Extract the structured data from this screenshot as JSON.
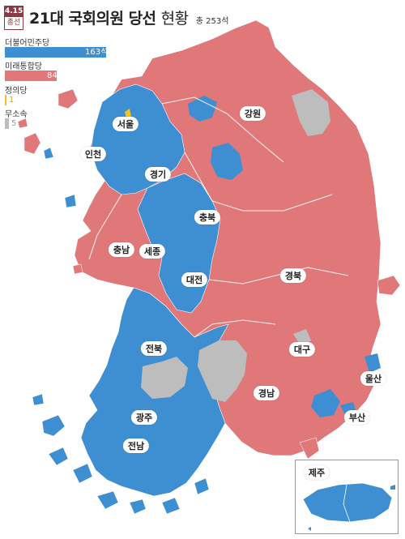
{
  "header": {
    "date_badge": "4.15",
    "badge_sub": "총선",
    "title_main": "21대 국회의원 당선",
    "title_sub": "현황",
    "total": "총 253석"
  },
  "legend": [
    {
      "party": "더불어민주당",
      "seats": 163,
      "seats_text": "163석",
      "color": "#3d8fd1"
    },
    {
      "party": "미래통합당",
      "seats": 84,
      "seats_text": "84",
      "color": "#e0787a"
    },
    {
      "party": "정의당",
      "seats": 1,
      "seats_text": "1",
      "color": "#f2c21b"
    },
    {
      "party": "무소속",
      "seats": 5,
      "seats_text": "5",
      "color": "#bdbdbd"
    }
  ],
  "regions": {
    "seoul": "서울",
    "incheon": "인천",
    "gyeonggi": "경기",
    "gangwon": "강원",
    "chungbuk": "충북",
    "chungnam": "충남",
    "sejong": "세종",
    "daejeon": "대전",
    "gyeongbuk": "경북",
    "jeonbuk": "전북",
    "daegu": "대구",
    "ulsan": "울산",
    "gyeongnam": "경남",
    "busan": "부산",
    "gwangju": "광주",
    "jeonnam": "전남",
    "jeju": "제주"
  },
  "colors": {
    "democratic": "#3d8fd1",
    "united_future": "#e0787a",
    "justice": "#f2c21b",
    "independent": "#bdbdbd",
    "title_accent": "#8a3a44"
  }
}
